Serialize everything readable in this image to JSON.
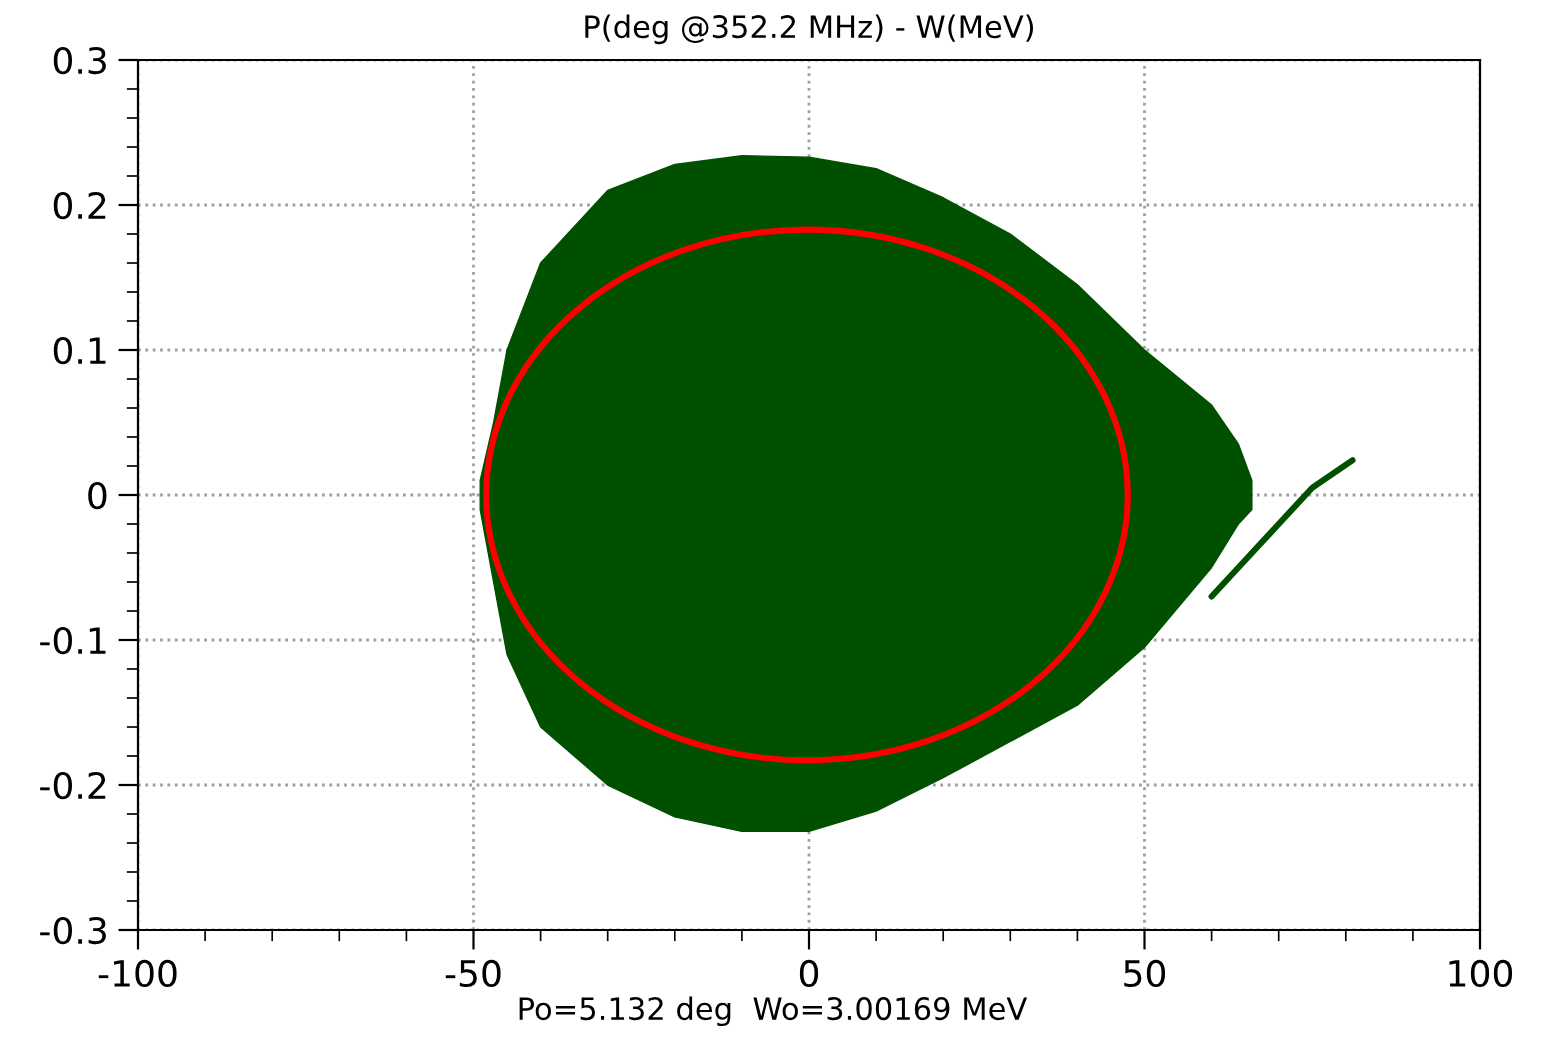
{
  "chart_data": {
    "type": "area",
    "title": "P(deg @352.2 MHz) - W(MeV)",
    "annotations": [
      "Po=5.132 deg  Wo=3.00169 MeV"
    ],
    "xlim": [
      -100,
      100
    ],
    "xticks": [
      -100,
      -50,
      0,
      50,
      100
    ],
    "ylim": [
      -0.3,
      0.3
    ],
    "yticks": [
      -0.3,
      -0.2,
      -0.1,
      0,
      0.1,
      0.2,
      0.3
    ],
    "grid": true,
    "series": [
      {
        "type": "area",
        "color": "#005000",
        "x": [
          -49,
          -47,
          -45,
          -40,
          -30,
          -20,
          -10,
          0,
          10,
          20,
          30,
          40,
          50,
          60,
          64,
          66
        ],
        "values": [
          0.01,
          0.05,
          0.1,
          0.16,
          0.21,
          0.228,
          0.234,
          0.233,
          0.225,
          0.205,
          0.18,
          0.145,
          0.1,
          0.062,
          0.035,
          0.01
        ]
      },
      {
        "color": "#005000",
        "x": [
          -49,
          -47,
          -45,
          -40,
          -30,
          -20,
          -10,
          0,
          10,
          20,
          30,
          40,
          50,
          60,
          64,
          66
        ],
        "values": [
          -0.01,
          -0.06,
          -0.11,
          -0.16,
          -0.2,
          -0.222,
          -0.232,
          -0.232,
          -0.218,
          -0.195,
          -0.17,
          -0.145,
          -0.105,
          -0.05,
          -0.02,
          -0.01
        ]
      },
      {
        "type": "line",
        "color": "#005000",
        "x": [
          60,
          65,
          70,
          75,
          81
        ],
        "values": [
          -0.07,
          -0.045,
          -0.02,
          0.005,
          0.024
        ]
      }
    ]
  }
}
